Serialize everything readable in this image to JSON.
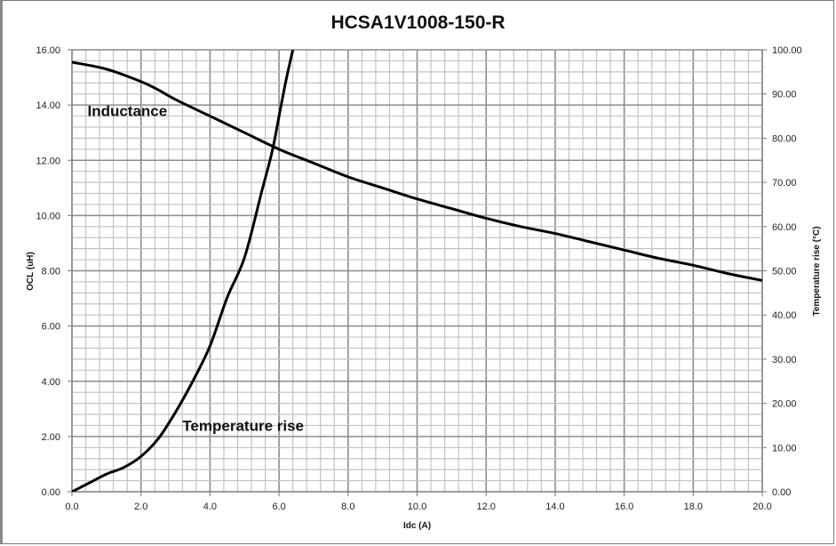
{
  "chart_data": {
    "type": "line",
    "title": "HCSA1V1008-150-R",
    "xlabel": "Idc (A)",
    "ylabel": "OCL (uH)",
    "y2label": "Temperature rise (°C)",
    "xlim": [
      0,
      20
    ],
    "ylim": [
      0,
      16
    ],
    "y2lim": [
      0,
      100
    ],
    "x_ticks": [
      "0.0",
      "2.0",
      "4.0",
      "6.0",
      "8.0",
      "10.0",
      "12.0",
      "14.0",
      "16.0",
      "18.0",
      "20.0"
    ],
    "y_ticks": [
      "0.00",
      "2.00",
      "4.00",
      "6.00",
      "8.00",
      "10.00",
      "12.00",
      "14.00",
      "16.00"
    ],
    "y2_ticks": [
      "0.00",
      "10.00",
      "20.00",
      "30.00",
      "40.00",
      "50.00",
      "60.00",
      "70.00",
      "80.00",
      "90.00",
      "100.00"
    ],
    "grid": true,
    "annotations": [
      {
        "text": "Inductance",
        "x": 0.45,
        "y": 13.6
      },
      {
        "text": "Temperature rise",
        "x": 3.2,
        "y": 2.2
      }
    ],
    "series": [
      {
        "name": "Inductance",
        "axis": "left",
        "x": [
          0,
          1,
          2,
          2.5,
          3,
          4,
          5,
          6,
          7,
          8,
          9,
          10,
          11,
          12,
          13,
          14,
          15,
          16,
          17,
          18,
          19,
          20
        ],
        "values": [
          15.55,
          15.3,
          14.85,
          14.55,
          14.2,
          13.6,
          13.0,
          12.4,
          11.9,
          11.4,
          11.0,
          10.6,
          10.25,
          9.9,
          9.6,
          9.35,
          9.05,
          8.75,
          8.45,
          8.2,
          7.9,
          7.65
        ]
      },
      {
        "name": "Temperature rise",
        "axis": "right",
        "x": [
          0,
          0.5,
          1,
          1.5,
          2,
          2.5,
          3,
          3.5,
          4,
          4.5,
          5,
          5.5,
          5.8,
          6,
          6.2,
          6.4
        ],
        "values": [
          0,
          2,
          4,
          5.5,
          8,
          12,
          18,
          25,
          33,
          44,
          53,
          68,
          77,
          85,
          93,
          100
        ]
      }
    ]
  }
}
